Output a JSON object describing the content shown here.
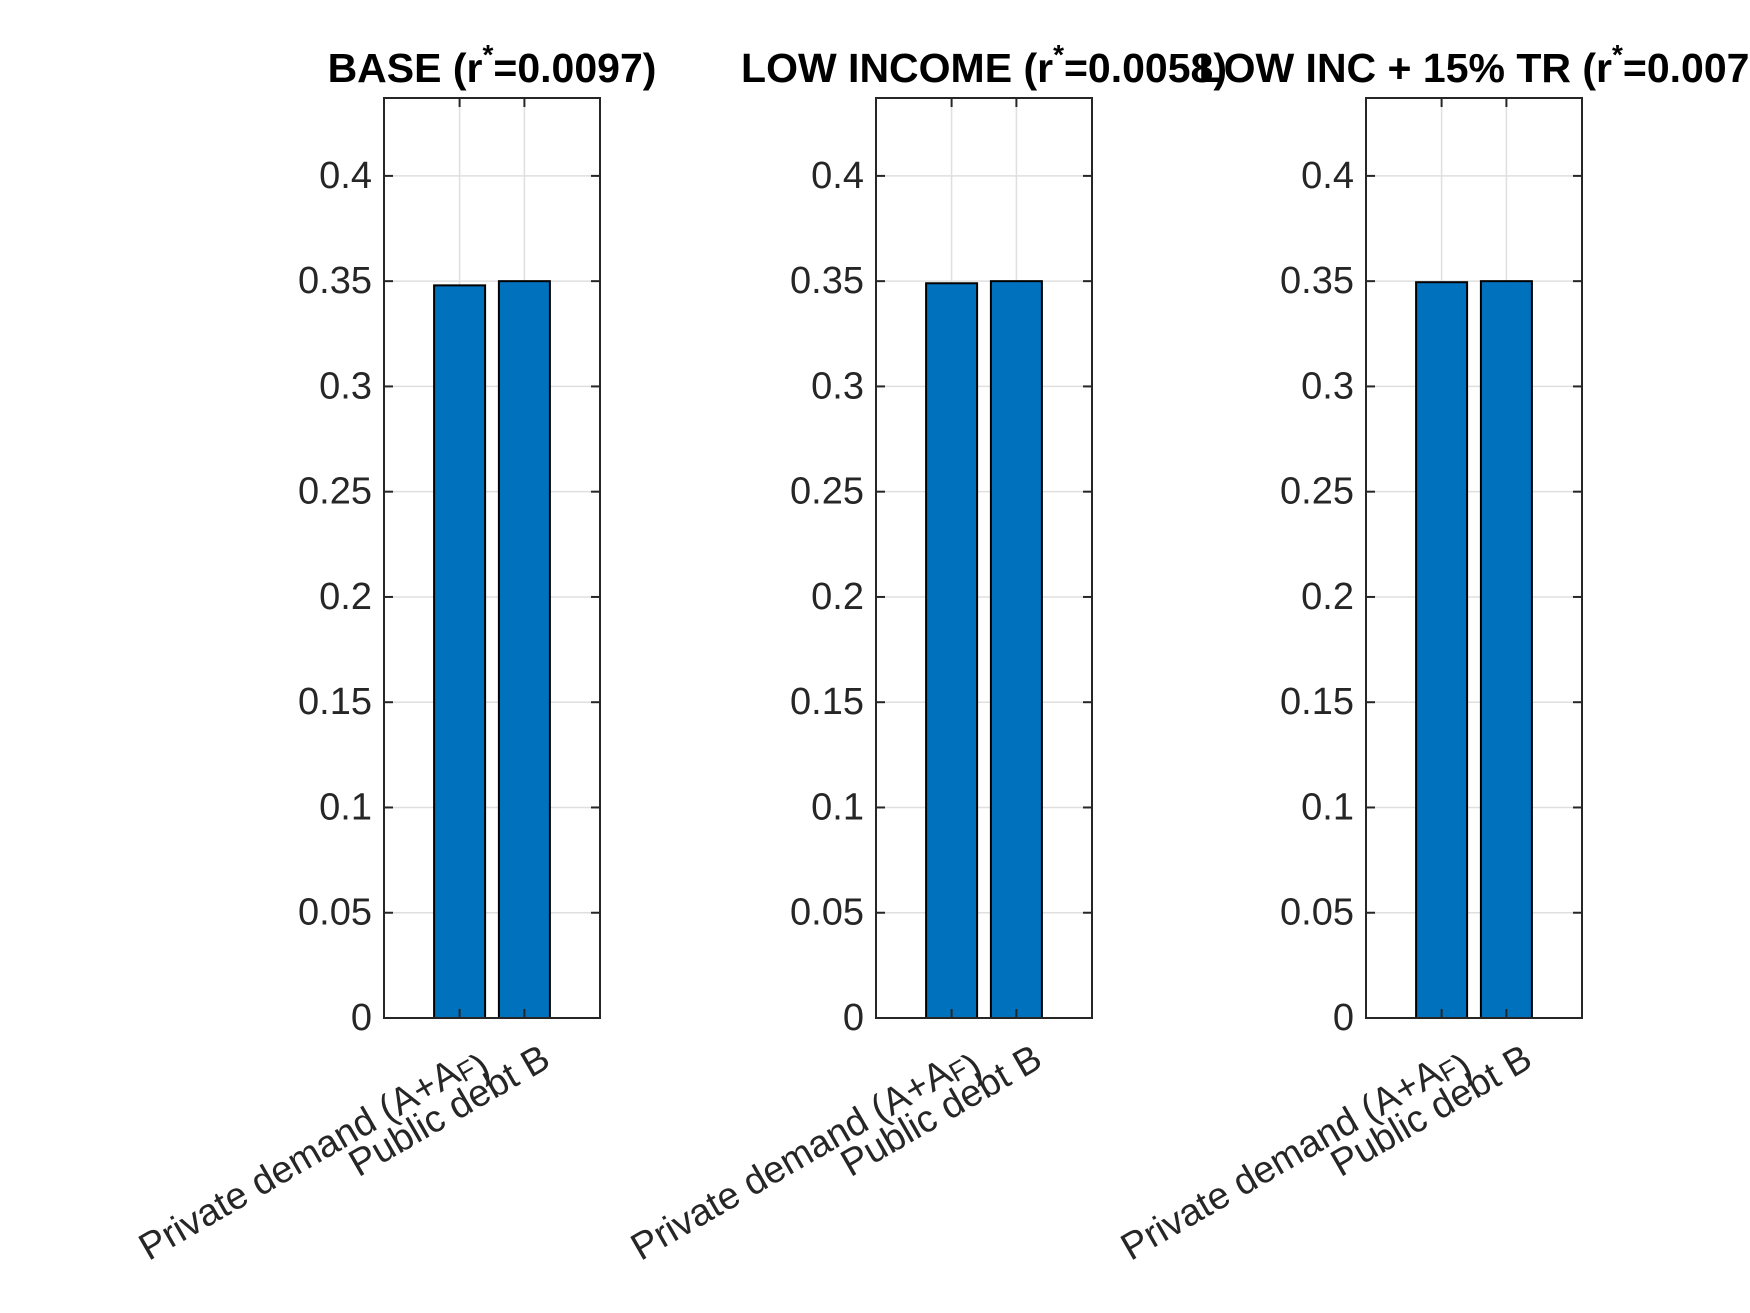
{
  "colors": {
    "bar_fill": "#0072BD",
    "bar_edge": "#000000",
    "grid": "#dfdfdf",
    "axis": "#262626"
  },
  "chart_data": [
    {
      "type": "bar",
      "title": {
        "main": "BASE (r",
        "sup": "*",
        "rest": "=0.0097)"
      },
      "categories": [
        {
          "main": "Private demand (A",
          "parts": [
            {
              "text": "+A",
              "sub": "F"
            },
            {
              "text": ")",
              "sub": ""
            }
          ]
        },
        {
          "main": "Public debt B",
          "parts": []
        }
      ],
      "values": [
        0.348,
        0.35
      ],
      "ylim": [
        0,
        0.437
      ],
      "yticks": [
        0,
        0.05,
        0.1,
        0.15,
        0.2,
        0.25,
        0.3,
        0.35,
        0.4
      ],
      "ytick_labels": [
        "0",
        "0.05",
        "0.1",
        "0.15",
        "0.2",
        "0.25",
        "0.3",
        "0.35",
        "0.4"
      ],
      "grid": true,
      "xlabel": "",
      "ylabel": ""
    },
    {
      "type": "bar",
      "title": {
        "main": "LOW INCOME (r",
        "sup": "*",
        "rest": "=0.0058)"
      },
      "categories": [
        {
          "main": "Private demand (A",
          "parts": [
            {
              "text": "+A",
              "sub": "F"
            },
            {
              "text": ")",
              "sub": ""
            }
          ]
        },
        {
          "main": "Public debt B",
          "parts": []
        }
      ],
      "values": [
        0.349,
        0.35
      ],
      "ylim": [
        0,
        0.437
      ],
      "yticks": [
        0,
        0.05,
        0.1,
        0.15,
        0.2,
        0.25,
        0.3,
        0.35,
        0.4
      ],
      "ytick_labels": [
        "0",
        "0.05",
        "0.1",
        "0.15",
        "0.2",
        "0.25",
        "0.3",
        "0.35",
        "0.4"
      ],
      "grid": true,
      "xlabel": "",
      "ylabel": ""
    },
    {
      "type": "bar",
      "title": {
        "main": "LOW INC + 15% TR (r",
        "sup": "*",
        "rest": "=0.007"
      },
      "categories": [
        {
          "main": "Private demand (A",
          "parts": [
            {
              "text": "+A",
              "sub": "F"
            },
            {
              "text": ")",
              "sub": ""
            }
          ]
        },
        {
          "main": "Public debt B",
          "parts": []
        }
      ],
      "values": [
        0.3495,
        0.35
      ],
      "ylim": [
        0,
        0.437
      ],
      "yticks": [
        0,
        0.05,
        0.1,
        0.15,
        0.2,
        0.25,
        0.3,
        0.35,
        0.4
      ],
      "ytick_labels": [
        "0",
        "0.05",
        "0.1",
        "0.15",
        "0.2",
        "0.25",
        "0.3",
        "0.35",
        "0.4"
      ],
      "grid": true,
      "xlabel": "",
      "ylabel": ""
    }
  ]
}
